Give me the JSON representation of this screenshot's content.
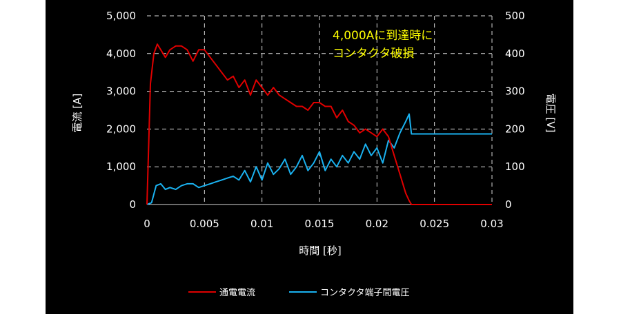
{
  "chart_data": {
    "type": "line",
    "title": "",
    "xlabel": "時間 [秒]",
    "ylabel": "電流 [A]",
    "y2label": "電圧 [V]",
    "xlim": [
      0,
      0.03
    ],
    "ylim": [
      0,
      5000
    ],
    "y2lim": [
      0,
      500
    ],
    "xticks": [
      "0",
      "0.005",
      "0.01",
      "0.015",
      "0.02",
      "0.025",
      "0.03"
    ],
    "yticks": [
      "0",
      "1,000",
      "2,000",
      "3,000",
      "4,000",
      "5,000"
    ],
    "y2ticks": [
      "0",
      "100",
      "200",
      "300",
      "400",
      "500"
    ],
    "grid": true,
    "legend_position": "bottom",
    "annotation": [
      "4,000Aに到達時に",
      "コンタクタ破損"
    ],
    "series": [
      {
        "name": "通電電流",
        "color": "#e00000",
        "axis": "left",
        "x": [
          0,
          0.0003,
          0.0006,
          0.0009,
          0.0012,
          0.0016,
          0.002,
          0.0025,
          0.003,
          0.0035,
          0.004,
          0.0045,
          0.005,
          0.0055,
          0.006,
          0.0065,
          0.007,
          0.0075,
          0.008,
          0.0085,
          0.009,
          0.0095,
          0.01,
          0.0105,
          0.011,
          0.0115,
          0.012,
          0.0125,
          0.013,
          0.0135,
          0.014,
          0.0145,
          0.015,
          0.0155,
          0.016,
          0.0165,
          0.017,
          0.0175,
          0.018,
          0.0185,
          0.019,
          0.0195,
          0.02,
          0.0205,
          0.021,
          0.0215,
          0.022,
          0.0225,
          0.0228,
          0.023,
          0.025,
          0.03
        ],
        "y": [
          0,
          3200,
          4000,
          4250,
          4100,
          3900,
          4100,
          4200,
          4200,
          4100,
          3800,
          4100,
          4100,
          3900,
          3700,
          3500,
          3300,
          3400,
          3100,
          3300,
          2900,
          3300,
          3100,
          2900,
          3100,
          2900,
          2800,
          2700,
          2600,
          2600,
          2500,
          2700,
          2700,
          2600,
          2600,
          2300,
          2500,
          2200,
          2100,
          1900,
          2000,
          1900,
          1800,
          2000,
          1800,
          1300,
          800,
          300,
          100,
          0,
          0,
          0
        ]
      },
      {
        "name": "コンタクタ端子間電圧",
        "color": "#1ab2f0",
        "axis": "right",
        "x": [
          0,
          0.0004,
          0.0008,
          0.0012,
          0.0016,
          0.002,
          0.0025,
          0.003,
          0.0035,
          0.004,
          0.0045,
          0.005,
          0.0055,
          0.006,
          0.0065,
          0.007,
          0.0075,
          0.008,
          0.0085,
          0.009,
          0.0095,
          0.01,
          0.0105,
          0.011,
          0.0115,
          0.012,
          0.0125,
          0.013,
          0.0135,
          0.014,
          0.0145,
          0.015,
          0.0155,
          0.016,
          0.0165,
          0.017,
          0.0175,
          0.018,
          0.0185,
          0.019,
          0.0195,
          0.02,
          0.0205,
          0.021,
          0.0215,
          0.022,
          0.0225,
          0.0228,
          0.023,
          0.025,
          0.03
        ],
        "y": [
          0,
          5,
          50,
          55,
          40,
          45,
          40,
          50,
          55,
          55,
          45,
          50,
          55,
          60,
          65,
          70,
          75,
          65,
          90,
          60,
          100,
          65,
          110,
          80,
          95,
          120,
          80,
          100,
          130,
          90,
          110,
          140,
          90,
          120,
          100,
          130,
          110,
          140,
          120,
          160,
          130,
          150,
          110,
          170,
          150,
          190,
          220,
          240,
          187,
          187,
          187
        ]
      }
    ]
  }
}
